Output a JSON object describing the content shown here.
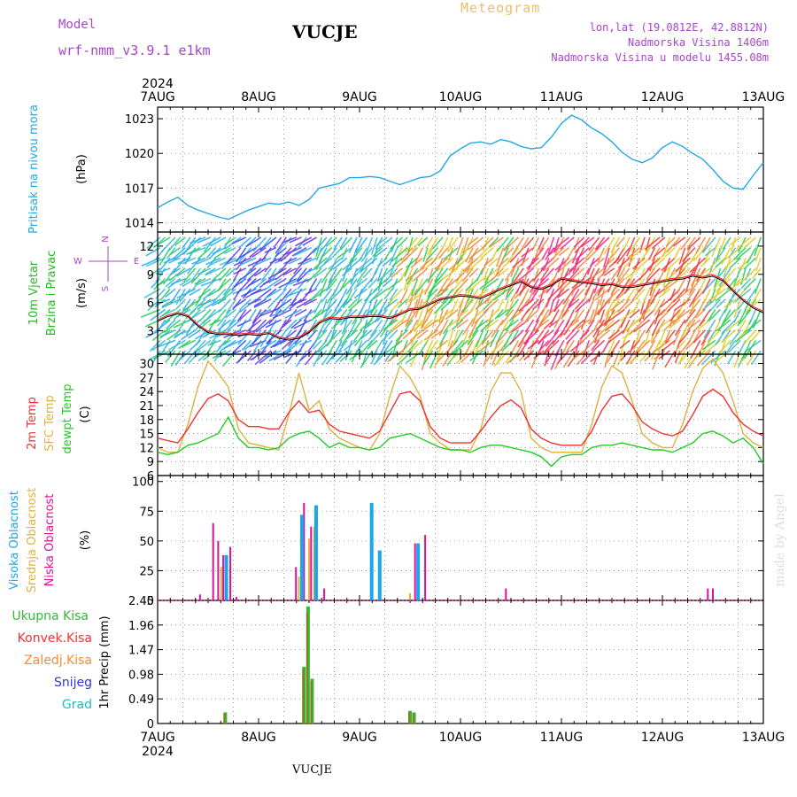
{
  "header": {
    "model_label": "Model",
    "model_name": "wrf-nmm_v3.9.1 e1km",
    "station": "VUCJE",
    "product": "Meteogram",
    "lonlat": "lon,lat (19.0812E, 42.8812N)",
    "elevation": "Nadmorska Visina 1406m",
    "model_elevation": "Nadmorska Visina u modelu 1455.08m",
    "credit": "made by Angel",
    "footer_station": "VUCJE"
  },
  "colors": {
    "pressure": "#22a8e6",
    "wind_axis": "#22bb22",
    "temp_2m": "#ee3333",
    "temp_sfc": "#e0b040",
    "dewpt": "#22cc22",
    "cloud_high": "#1aa6ee",
    "cloud_mid": "#e0b040",
    "cloud_low": "#dd1199",
    "precip_total": "#33bb33",
    "precip_conv": "#ee3333",
    "precip_frozen": "#ff8833",
    "snow": "#3333dd",
    "hail": "#22bbbb",
    "compass": "#aa44cc",
    "header_purple": "#aa44cc",
    "header_gold": "#e6c06a"
  },
  "time_axis": {
    "year": "2024",
    "ticks": [
      "7AUG",
      "8AUG",
      "9AUG",
      "10AUG",
      "11AUG",
      "12AUG",
      "13AUG"
    ],
    "start_day": 7,
    "end_day": 13
  },
  "compass": {
    "north": "N",
    "south": "S",
    "east": "E",
    "west": "W",
    "top": "N",
    "left": "W",
    "right": "E",
    "bottom": "S"
  },
  "chart_data": [
    {
      "type": "line",
      "panel": "pressure",
      "ylabel": "Pritisak na nivou mora",
      "units": "(hPa)",
      "yticks": [
        1014,
        1017,
        1020,
        1023
      ],
      "ylim": [
        1013.2,
        1024.0
      ],
      "grid": true,
      "series": [
        {
          "x": [
            7.0,
            7.1,
            7.2,
            7.3,
            7.4,
            7.5,
            7.6,
            7.7,
            7.8,
            7.9,
            8.0,
            8.1,
            8.2,
            8.3,
            8.4,
            8.5,
            8.6,
            8.7,
            8.8,
            8.9,
            9.0,
            9.1,
            9.2,
            9.3,
            9.4,
            9.5,
            9.6,
            9.7,
            9.8,
            9.9,
            10.0,
            10.1,
            10.2,
            10.3,
            10.4,
            10.5,
            10.6,
            10.7,
            10.8,
            10.9,
            11.0,
            11.1,
            11.2,
            11.3,
            11.4,
            11.5,
            11.6,
            11.7,
            11.8,
            11.9,
            12.0,
            12.1,
            12.2,
            12.3,
            12.4,
            12.5,
            12.6,
            12.7,
            12.8,
            12.9,
            13.0
          ],
          "values": [
            1015.3,
            1015.8,
            1016.2,
            1015.5,
            1015.1,
            1014.8,
            1014.5,
            1014.3,
            1014.7,
            1015.1,
            1015.4,
            1015.7,
            1015.6,
            1015.8,
            1015.5,
            1016.0,
            1017.0,
            1017.2,
            1017.4,
            1017.9,
            1017.9,
            1018.0,
            1017.9,
            1017.6,
            1017.3,
            1017.6,
            1017.9,
            1018.0,
            1018.5,
            1019.8,
            1020.4,
            1020.9,
            1021.0,
            1020.8,
            1021.2,
            1021.0,
            1020.6,
            1020.4,
            1020.5,
            1021.4,
            1022.6,
            1023.3,
            1022.9,
            1022.2,
            1021.7,
            1021.0,
            1020.1,
            1019.5,
            1019.2,
            1019.6,
            1020.5,
            1021.0,
            1020.6,
            1020.0,
            1019.5,
            1018.6,
            1017.6,
            1017.0,
            1016.9,
            1018.1,
            1019.2
          ]
        }
      ]
    },
    {
      "type": "line",
      "panel": "wind",
      "ylabel": "10m Vjetar",
      "ylabel2": "Brzina i Pravac",
      "units": "(m/s)",
      "yticks": [
        3,
        6,
        9,
        12
      ],
      "ylim": [
        0.5,
        13.5
      ],
      "grid": true,
      "series": [
        {
          "x": [
            7.0,
            7.1,
            7.2,
            7.3,
            7.4,
            7.5,
            7.6,
            7.7,
            7.8,
            7.9,
            8.0,
            8.1,
            8.2,
            8.3,
            8.4,
            8.5,
            8.6,
            8.7,
            8.8,
            8.9,
            9.0,
            9.1,
            9.2,
            9.3,
            9.4,
            9.5,
            9.6,
            9.7,
            9.8,
            9.9,
            10.0,
            10.1,
            10.2,
            10.3,
            10.4,
            10.5,
            10.6,
            10.7,
            10.8,
            10.9,
            11.0,
            11.1,
            11.2,
            11.3,
            11.4,
            11.5,
            11.6,
            11.7,
            11.8,
            11.9,
            12.0,
            12.1,
            12.2,
            12.3,
            12.4,
            12.5,
            12.6,
            12.7,
            12.8,
            12.9,
            13.0
          ],
          "values": [
            4.0,
            4.5,
            4.8,
            4.5,
            3.5,
            2.8,
            2.6,
            2.6,
            2.5,
            2.6,
            2.5,
            2.7,
            2.2,
            2.0,
            2.2,
            2.8,
            3.8,
            4.3,
            4.2,
            4.4,
            4.4,
            4.5,
            4.5,
            4.3,
            4.7,
            5.2,
            5.3,
            5.8,
            6.3,
            6.5,
            6.7,
            6.6,
            6.4,
            6.9,
            7.4,
            7.8,
            8.2,
            7.6,
            7.4,
            7.8,
            8.5,
            8.3,
            8.1,
            8.0,
            7.8,
            7.9,
            7.6,
            7.6,
            7.8,
            8.0,
            8.2,
            8.4,
            8.5,
            8.8,
            8.6,
            8.8,
            8.3,
            7.2,
            6.2,
            5.4,
            4.9
          ]
        }
      ]
    },
    {
      "type": "line",
      "panel": "temperature",
      "ylabel_2m": "2m Temp",
      "ylabel_sfc": "SFC Temp",
      "ylabel_dewpt": "dewpt Temp",
      "units": "(C)",
      "yticks": [
        6,
        9,
        12,
        15,
        18,
        21,
        24,
        27,
        30
      ],
      "ylim": [
        6,
        32
      ],
      "grid": true,
      "series": [
        {
          "name": "2m Temp",
          "x": [
            7.0,
            7.1,
            7.2,
            7.3,
            7.4,
            7.5,
            7.6,
            7.7,
            7.8,
            7.9,
            8.0,
            8.1,
            8.2,
            8.3,
            8.4,
            8.5,
            8.6,
            8.7,
            8.8,
            8.9,
            9.0,
            9.1,
            9.2,
            9.3,
            9.4,
            9.5,
            9.6,
            9.7,
            9.8,
            9.9,
            10.0,
            10.1,
            10.2,
            10.3,
            10.4,
            10.5,
            10.6,
            10.7,
            10.8,
            10.9,
            11.0,
            11.1,
            11.2,
            11.3,
            11.4,
            11.5,
            11.6,
            11.7,
            11.8,
            11.9,
            12.0,
            12.1,
            12.2,
            12.3,
            12.4,
            12.5,
            12.6,
            12.7,
            12.8,
            12.9,
            13.0
          ],
          "values": [
            14,
            13.5,
            13,
            16,
            19.5,
            22.5,
            23.5,
            22,
            18,
            16.5,
            16.5,
            16,
            16,
            19.5,
            22,
            19.5,
            20,
            17,
            15.5,
            15,
            14.5,
            14,
            15.5,
            19.5,
            23.5,
            24,
            22,
            16.5,
            14,
            13,
            13,
            13,
            15.5,
            18.5,
            21,
            22.2,
            20.5,
            16,
            14,
            13,
            12.5,
            12.5,
            12.5,
            15.5,
            20,
            23,
            23.5,
            21,
            17.5,
            16,
            15,
            14.5,
            15.5,
            19,
            23,
            24.5,
            23,
            19.5,
            17,
            15.5,
            14.5
          ]
        },
        {
          "name": "SFC Temp",
          "x": [
            7.0,
            7.1,
            7.2,
            7.3,
            7.4,
            7.5,
            7.6,
            7.7,
            7.8,
            7.9,
            8.0,
            8.1,
            8.2,
            8.3,
            8.4,
            8.5,
            8.6,
            8.7,
            8.8,
            8.9,
            9.0,
            9.1,
            9.2,
            9.3,
            9.4,
            9.5,
            9.6,
            9.7,
            9.8,
            9.9,
            10.0,
            10.1,
            10.2,
            10.3,
            10.4,
            10.5,
            10.6,
            10.7,
            10.8,
            10.9,
            11.0,
            11.1,
            11.2,
            11.3,
            11.4,
            11.5,
            11.6,
            11.7,
            11.8,
            11.9,
            12.0,
            12.1,
            12.2,
            12.3,
            12.4,
            12.5,
            12.6,
            12.7,
            12.8,
            12.9,
            13.0
          ],
          "values": [
            12,
            11,
            11,
            17,
            25,
            30.5,
            28,
            25,
            16,
            13,
            12.5,
            12,
            11.5,
            19,
            28,
            20,
            22,
            16,
            14,
            13,
            12,
            11.5,
            15,
            23,
            29.5,
            27,
            23,
            15,
            13,
            11.5,
            11.5,
            11.5,
            16,
            24,
            28,
            28,
            24,
            14,
            12,
            11,
            11,
            11,
            11,
            17,
            25,
            29.5,
            28,
            22,
            15,
            13,
            12,
            12,
            17,
            24,
            29,
            31,
            28,
            22,
            15,
            13,
            12
          ]
        },
        {
          "name": "dewpt Temp",
          "x": [
            7.0,
            7.1,
            7.2,
            7.3,
            7.4,
            7.5,
            7.6,
            7.7,
            7.8,
            7.9,
            8.0,
            8.1,
            8.2,
            8.3,
            8.4,
            8.5,
            8.6,
            8.7,
            8.8,
            8.9,
            9.0,
            9.1,
            9.2,
            9.3,
            9.4,
            9.5,
            9.6,
            9.7,
            9.8,
            9.9,
            10.0,
            10.1,
            10.2,
            10.3,
            10.4,
            10.5,
            10.6,
            10.7,
            10.8,
            10.9,
            11.0,
            11.1,
            11.2,
            11.3,
            11.4,
            11.5,
            11.6,
            11.7,
            11.8,
            11.9,
            12.0,
            12.1,
            12.2,
            12.3,
            12.4,
            12.5,
            12.6,
            12.7,
            12.8,
            12.9,
            13.0
          ],
          "values": [
            11,
            10.5,
            11,
            12.5,
            13,
            14,
            15,
            18.5,
            14,
            12,
            12,
            11.5,
            12,
            14,
            15,
            15.5,
            14,
            12,
            13,
            12,
            12,
            11.5,
            12,
            14,
            14.5,
            15,
            14,
            13,
            12,
            11.5,
            11.5,
            11,
            12,
            12.5,
            12.5,
            12,
            11.5,
            11,
            10,
            8,
            10,
            10.5,
            10.5,
            12,
            12.5,
            12.5,
            13,
            12.5,
            12,
            11.5,
            11.5,
            11,
            12,
            13,
            15,
            15.5,
            14.5,
            13,
            14,
            12,
            8.5
          ]
        }
      ]
    },
    {
      "type": "bar",
      "panel": "clouds",
      "ylabel_high": "Visoka Oblacnost",
      "ylabel_mid": "Srednja Oblacnost",
      "ylabel_low": "Niska Oblacnost",
      "units": "(%)",
      "yticks": [
        0,
        25,
        50,
        75,
        100
      ],
      "ylim": [
        0,
        105
      ],
      "grid": true,
      "series": [
        {
          "name": "Niska Oblacnost",
          "x": [
            7.42,
            7.55,
            7.6,
            7.65,
            7.72,
            7.78,
            8.37,
            8.45,
            8.52,
            8.65,
            9.55,
            9.65,
            10.45,
            12.45,
            12.5
          ],
          "values": [
            5,
            65,
            50,
            38,
            45,
            3,
            28,
            82,
            62,
            10,
            48,
            55,
            10,
            10,
            10
          ]
        },
        {
          "name": "Srednja Oblacnost",
          "x": [
            7.63,
            8.4,
            8.5,
            8.55,
            9.5
          ],
          "values": [
            28,
            20,
            52,
            62,
            6
          ]
        },
        {
          "name": "Visoka Oblacnost",
          "x": [
            7.68,
            8.43,
            8.57,
            9.12,
            9.2,
            9.58
          ],
          "values": [
            38,
            72,
            80,
            82,
            42,
            48
          ]
        }
      ]
    },
    {
      "type": "bar",
      "panel": "precip",
      "ylabel_total": "Ukupna Kisa",
      "ylabel_conv": "Konvek.Kisa",
      "ylabel_frozen": "Zaledj.Kisa",
      "ylabel_snow": "Snijeg",
      "ylabel_hail": "Grad",
      "units": "1hr Precip (mm)",
      "ytick_labels": [
        "0",
        "0.49",
        "0.98",
        "1.47",
        "1.96",
        "2.45"
      ],
      "yticks": [
        0,
        0.49,
        0.98,
        1.47,
        1.96,
        2.45
      ],
      "ylim": [
        0,
        2.45
      ],
      "grid": true,
      "series": [
        {
          "name": "Ukupna Kisa",
          "x": [
            7.67,
            8.45,
            8.49,
            8.53,
            9.5,
            9.54
          ],
          "values": [
            0.22,
            1.13,
            2.33,
            0.89,
            0.25,
            0.22
          ]
        }
      ]
    }
  ]
}
